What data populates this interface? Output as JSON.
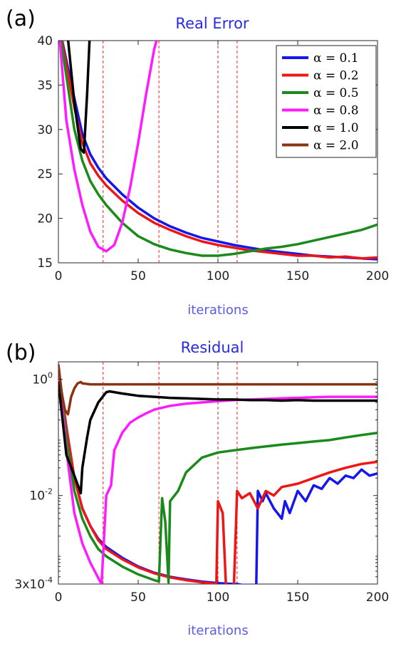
{
  "figure": {
    "panel_a_label": "(a)",
    "panel_b_label": "(b)"
  },
  "chart_data": [
    {
      "type": "line",
      "panel": "(a)",
      "title": "Real Error",
      "xlabel": "iterations",
      "ylabel": "",
      "xlim": [
        0,
        200
      ],
      "ylim": [
        15,
        40
      ],
      "yscale": "linear",
      "xticks": [
        0,
        50,
        100,
        150,
        200
      ],
      "xtick_labels": [
        "0",
        "50",
        "100",
        "150",
        "200"
      ],
      "yticks": [
        15,
        20,
        25,
        30,
        35,
        40
      ],
      "ytick_labels": [
        "15",
        "20",
        "25",
        "30",
        "35",
        "40"
      ],
      "grid": false,
      "legend_position": "top-right",
      "vlines": [
        28,
        63,
        100,
        112
      ],
      "series": [
        {
          "name": "α = 0.1",
          "color": "#1515ee",
          "x": [
            0,
            10,
            15,
            20,
            25,
            30,
            40,
            50,
            60,
            70,
            80,
            90,
            100,
            110,
            120,
            130,
            140,
            150,
            160,
            170,
            180,
            190,
            200
          ],
          "y": [
            42,
            33.5,
            29.5,
            27.2,
            25.7,
            24.5,
            22.7,
            21.2,
            20.0,
            19.1,
            18.4,
            17.8,
            17.4,
            17.0,
            16.7,
            16.4,
            16.2,
            16.0,
            15.8,
            15.7,
            15.6,
            15.5,
            15.4
          ]
        },
        {
          "name": "α = 0.2",
          "color": "#ee1515",
          "x": [
            0,
            10,
            15,
            20,
            25,
            30,
            40,
            50,
            60,
            70,
            80,
            90,
            100,
            110,
            120,
            130,
            140,
            150,
            160,
            170,
            180,
            190,
            200
          ],
          "y": [
            42,
            32.5,
            28.5,
            26.2,
            24.8,
            23.7,
            22.0,
            20.6,
            19.5,
            18.7,
            18.0,
            17.4,
            17.0,
            16.7,
            16.4,
            16.2,
            16.0,
            15.8,
            15.8,
            15.6,
            15.7,
            15.5,
            15.6
          ]
        },
        {
          "name": "α = 0.5",
          "color": "#1a8a1a",
          "x": [
            0,
            10,
            15,
            20,
            25,
            30,
            40,
            50,
            60,
            70,
            80,
            90,
            100,
            110,
            120,
            130,
            140,
            150,
            160,
            170,
            180,
            190,
            200
          ],
          "y": [
            42,
            30,
            26.5,
            24.2,
            22.7,
            21.5,
            19.5,
            18.0,
            17.1,
            16.5,
            16.1,
            15.8,
            15.8,
            16.0,
            16.3,
            16.6,
            16.8,
            17.1,
            17.5,
            17.9,
            18.3,
            18.7,
            19.3
          ]
        },
        {
          "name": "α = 0.8",
          "color": "#ff1aff",
          "x": [
            0,
            5,
            10,
            15,
            20,
            25,
            30,
            35,
            40,
            45,
            50,
            55,
            60,
            63
          ],
          "y": [
            42,
            31,
            25.5,
            21.5,
            18.5,
            16.8,
            16.3,
            17.0,
            19.5,
            23.5,
            28.5,
            34.0,
            39.0,
            41.0
          ]
        },
        {
          "name": "α = 1.0",
          "color": "#000000",
          "x": [
            5,
            10,
            14,
            16,
            18,
            20
          ],
          "y": [
            42,
            33,
            27.8,
            27.4,
            34,
            42
          ]
        },
        {
          "name": "α = 2.0",
          "color": "#8a3310",
          "x": [],
          "y": []
        }
      ]
    },
    {
      "type": "line",
      "panel": "(b)",
      "title": "Residual",
      "xlabel": "iterations",
      "ylabel": "",
      "xlim": [
        0,
        200
      ],
      "ylim": [
        0.0003,
        2
      ],
      "yscale": "log",
      "xticks": [
        0,
        50,
        100,
        150,
        200
      ],
      "xtick_labels": [
        "0",
        "50",
        "100",
        "150",
        "200"
      ],
      "yticks": [
        1,
        0.01,
        0.0003
      ],
      "ytick_labels": [
        {
          "base": "10",
          "exp": "0"
        },
        {
          "base": "10",
          "exp": "-2"
        },
        {
          "base": "3x10",
          "exp": "-4"
        }
      ],
      "grid": false,
      "legend_position": "none",
      "vlines": [
        28,
        63,
        100,
        112
      ],
      "series": [
        {
          "name": "α = 0.1",
          "color": "#1515ee",
          "x": [
            0,
            5,
            10,
            15,
            20,
            25,
            30,
            40,
            50,
            60,
            70,
            80,
            90,
            100,
            110,
            112,
            115,
            120,
            122,
            124,
            125,
            128,
            130,
            135,
            140,
            142,
            145,
            150,
            155,
            160,
            165,
            170,
            175,
            180,
            185,
            190,
            195,
            200
          ],
          "y": [
            1.5,
            0.15,
            0.02,
            0.006,
            0.003,
            0.0018,
            0.0013,
            0.00085,
            0.0006,
            0.00047,
            0.0004,
            0.00036,
            0.00033,
            0.00031,
            0.0003,
            0.0003,
            0.00029,
            0.00029,
            0.00028,
            0.00028,
            0.012,
            0.008,
            0.011,
            0.006,
            0.004,
            0.008,
            0.005,
            0.012,
            0.008,
            0.015,
            0.013,
            0.02,
            0.016,
            0.022,
            0.02,
            0.028,
            0.022,
            0.024
          ]
        },
        {
          "name": "α = 0.2",
          "color": "#ee1515",
          "x": [
            0,
            5,
            10,
            15,
            20,
            25,
            30,
            40,
            50,
            60,
            70,
            80,
            90,
            99,
            100,
            103,
            105,
            110,
            112,
            115,
            120,
            125,
            130,
            135,
            140,
            150,
            160,
            170,
            180,
            190,
            200
          ],
          "y": [
            1.5,
            0.15,
            0.02,
            0.006,
            0.003,
            0.0017,
            0.0012,
            0.0008,
            0.00058,
            0.00046,
            0.00039,
            0.00035,
            0.00032,
            0.0003,
            0.008,
            0.005,
            0.00029,
            0.00028,
            0.012,
            0.009,
            0.011,
            0.006,
            0.012,
            0.01,
            0.014,
            0.016,
            0.02,
            0.025,
            0.03,
            0.035,
            0.038
          ]
        },
        {
          "name": "α = 0.5",
          "color": "#1a8a1a",
          "x": [
            0,
            5,
            10,
            15,
            20,
            25,
            30,
            40,
            50,
            60,
            63,
            65,
            67,
            69,
            70,
            75,
            80,
            90,
            100,
            110,
            120,
            130,
            140,
            150,
            160,
            170,
            180,
            190,
            200
          ],
          "y": [
            1.5,
            0.1,
            0.012,
            0.004,
            0.002,
            0.0012,
            0.0009,
            0.0006,
            0.00044,
            0.00035,
            0.00033,
            0.009,
            0.0035,
            0.00032,
            0.008,
            0.012,
            0.025,
            0.045,
            0.055,
            0.06,
            0.065,
            0.07,
            0.075,
            0.08,
            0.085,
            0.09,
            0.1,
            0.11,
            0.12
          ]
        },
        {
          "name": "α = 0.8",
          "color": "#ff1aff",
          "x": [
            0,
            5,
            10,
            15,
            20,
            25,
            27,
            28,
            30,
            33,
            35,
            40,
            45,
            50,
            55,
            60,
            70,
            80,
            90,
            100,
            110,
            120,
            130,
            140,
            150,
            160,
            170,
            180,
            190,
            200
          ],
          "y": [
            1.5,
            0.06,
            0.005,
            0.0015,
            0.0007,
            0.00038,
            0.0003,
            0.0009,
            0.01,
            0.015,
            0.06,
            0.12,
            0.18,
            0.22,
            0.26,
            0.3,
            0.35,
            0.38,
            0.4,
            0.42,
            0.44,
            0.45,
            0.46,
            0.47,
            0.48,
            0.49,
            0.5,
            0.5,
            0.5,
            0.5
          ]
        },
        {
          "name": "α = 1.0",
          "color": "#000000",
          "x": [
            0,
            5,
            10,
            14,
            15,
            18,
            20,
            25,
            30,
            32,
            40,
            50,
            60,
            70,
            80,
            90,
            100,
            110,
            120,
            130,
            140,
            150,
            160,
            170,
            180,
            190,
            200
          ],
          "y": [
            0.9,
            0.05,
            0.022,
            0.011,
            0.03,
            0.1,
            0.2,
            0.4,
            0.6,
            0.62,
            0.57,
            0.52,
            0.5,
            0.48,
            0.47,
            0.46,
            0.45,
            0.45,
            0.44,
            0.44,
            0.43,
            0.44,
            0.43,
            0.43,
            0.43,
            0.43,
            0.43
          ]
        },
        {
          "name": "α = 2.0",
          "color": "#8a3310",
          "x": [
            0,
            2,
            4,
            6,
            8,
            10,
            12,
            14,
            15,
            20,
            30,
            50,
            100,
            150,
            200
          ],
          "y": [
            1.8,
            0.6,
            0.3,
            0.25,
            0.5,
            0.7,
            0.85,
            0.9,
            0.85,
            0.82,
            0.82,
            0.82,
            0.82,
            0.82,
            0.82
          ]
        }
      ]
    }
  ]
}
